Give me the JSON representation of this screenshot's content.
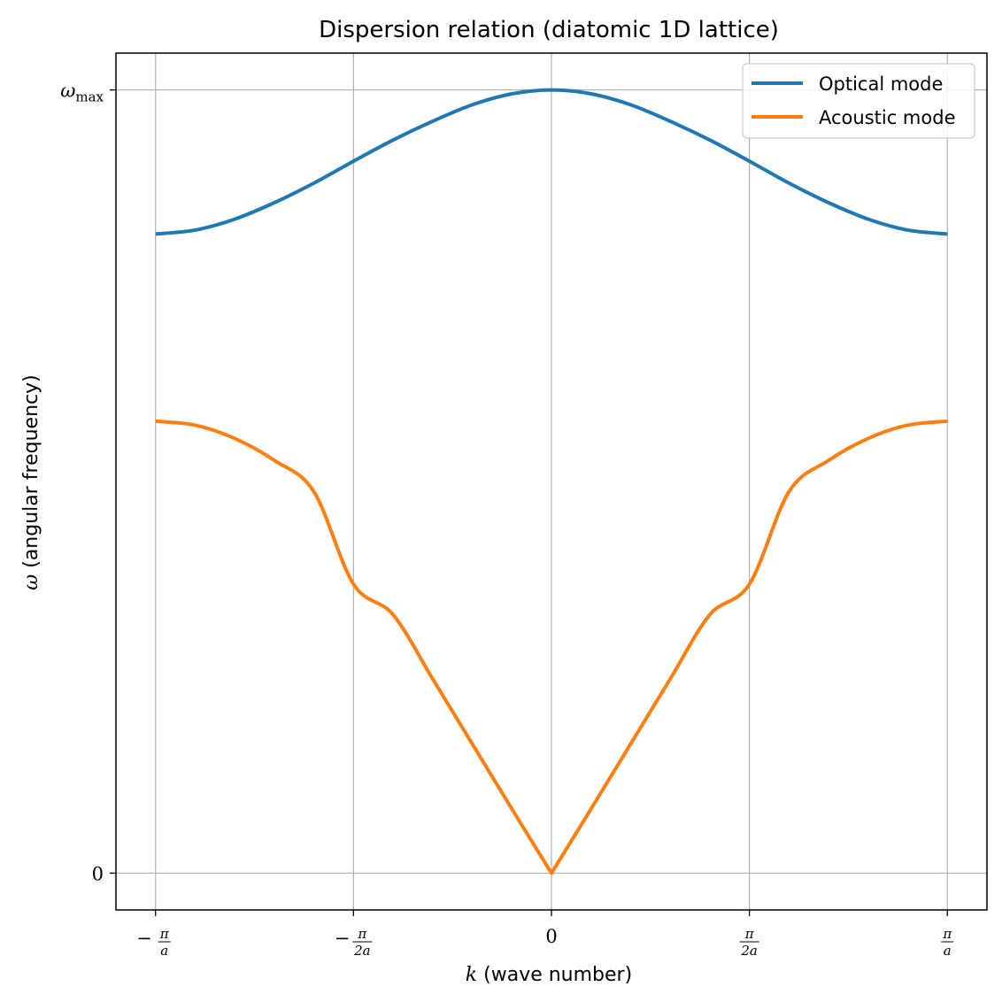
{
  "chart_data": {
    "type": "line",
    "title": "Dispersion relation (diatomic 1D lattice)",
    "xlabel_symbol": "k",
    "xlabel_text": " (wave number)",
    "ylabel_symbol": "ω",
    "ylabel_text": " (angular frequency)",
    "xlim": [
      -1.1,
      1.1
    ],
    "ylim": [
      -0.047,
      1.047
    ],
    "x_unit": "π/a",
    "x_ticks": [
      {
        "value": -1.0,
        "sign": "−",
        "num": "π",
        "den": "a"
      },
      {
        "value": -0.5,
        "sign": "−",
        "num": "π",
        "den": "2a"
      },
      {
        "value": 0.0,
        "sign": "",
        "num": "",
        "den": "",
        "plain": "0"
      },
      {
        "value": 0.5,
        "sign": "",
        "num": "π",
        "den": "2a"
      },
      {
        "value": 1.0,
        "sign": "",
        "num": "π",
        "den": "a"
      }
    ],
    "y_ticks": [
      {
        "value": 0.0,
        "main": "0",
        "sub": ""
      },
      {
        "value": 1.0,
        "main": "ω",
        "sub": "max"
      }
    ],
    "grid": true,
    "legend_position": "top-right",
    "series": [
      {
        "name": "Optical mode",
        "color": "#1f77b4",
        "x": [
          -1.0,
          -0.9,
          -0.8,
          -0.7,
          -0.6,
          -0.5,
          -0.4,
          -0.3,
          -0.2,
          -0.1,
          0.0,
          0.1,
          0.2,
          0.3,
          0.4,
          0.5,
          0.6,
          0.7,
          0.8,
          0.9,
          1.0
        ],
        "y": [
          0.816,
          0.821,
          0.835,
          0.856,
          0.881,
          0.909,
          0.936,
          0.96,
          0.981,
          0.995,
          1.0,
          0.995,
          0.981,
          0.96,
          0.936,
          0.909,
          0.881,
          0.856,
          0.835,
          0.821,
          0.816
        ]
      },
      {
        "name": "Acoustic mode",
        "color": "#ff7f0e",
        "x": [
          -1.0,
          -0.9,
          -0.8,
          -0.7,
          -0.6,
          -0.5,
          -0.4,
          -0.3,
          -0.2,
          -0.1,
          0.0,
          0.1,
          0.2,
          0.3,
          0.4,
          0.5,
          0.6,
          0.7,
          0.8,
          0.9,
          1.0
        ],
        "y": [
          0.577,
          0.572,
          0.555,
          0.527,
          0.487,
          0.369,
          0.33,
          0.248,
          0.165,
          0.082,
          0.0,
          0.082,
          0.165,
          0.248,
          0.33,
          0.369,
          0.487,
          0.527,
          0.555,
          0.572,
          0.577
        ]
      }
    ]
  }
}
